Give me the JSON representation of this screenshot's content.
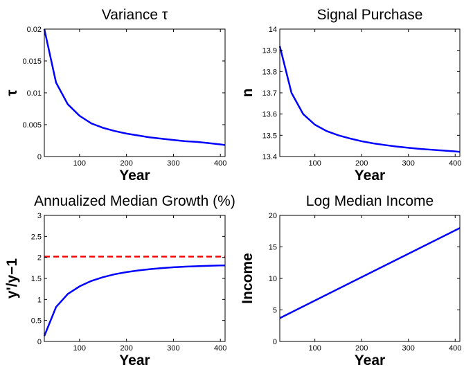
{
  "chart_data": [
    {
      "type": "line",
      "title": "Variance τ",
      "xlabel": "Year",
      "ylabel": "τ",
      "xlim": [
        25,
        410
      ],
      "ylim": [
        0,
        0.02
      ],
      "xticks": [
        "100",
        "200",
        "300",
        "400"
      ],
      "xtick_values": [
        100,
        200,
        300,
        400
      ],
      "yticks": [
        "0",
        "0.005",
        "0.01",
        "0.015",
        "0.02"
      ],
      "ytick_values": [
        0,
        0.005,
        0.01,
        0.015,
        0.02
      ],
      "grid": false,
      "series": [
        {
          "color": "#0000ff",
          "style": "solid",
          "x": [
            25,
            50,
            75,
            100,
            125,
            150,
            175,
            200,
            225,
            250,
            275,
            300,
            325,
            350,
            375,
            400,
            410
          ],
          "y": [
            0.02,
            0.0116,
            0.0082,
            0.0064,
            0.0052,
            0.0045,
            0.004,
            0.0036,
            0.0033,
            0.003,
            0.0028,
            0.0026,
            0.0024,
            0.0023,
            0.0021,
            0.0019,
            0.0018
          ]
        }
      ]
    },
    {
      "type": "line",
      "title": "Signal Purchase",
      "xlabel": "Year",
      "ylabel": "n",
      "xlim": [
        25,
        410
      ],
      "ylim": [
        13.4,
        14
      ],
      "xticks": [
        "100",
        "200",
        "300",
        "400"
      ],
      "xtick_values": [
        100,
        200,
        300,
        400
      ],
      "yticks": [
        "13.4",
        "13.5",
        "13.6",
        "13.7",
        "13.8",
        "13.9",
        "14"
      ],
      "ytick_values": [
        13.4,
        13.5,
        13.6,
        13.7,
        13.8,
        13.9,
        14
      ],
      "grid": false,
      "series": [
        {
          "color": "#0000ff",
          "style": "solid",
          "x": [
            25,
            50,
            75,
            100,
            125,
            150,
            175,
            200,
            225,
            250,
            275,
            300,
            325,
            350,
            375,
            400,
            410
          ],
          "y": [
            13.92,
            13.7,
            13.6,
            13.55,
            13.52,
            13.5,
            13.485,
            13.472,
            13.462,
            13.454,
            13.447,
            13.441,
            13.436,
            13.432,
            13.428,
            13.424,
            13.422
          ]
        }
      ]
    },
    {
      "type": "line",
      "title": "Annualized Median Growth (%)",
      "xlabel": "Year",
      "ylabel": "y'/y−1",
      "xlim": [
        25,
        410
      ],
      "ylim": [
        0,
        3
      ],
      "xticks": [
        "100",
        "200",
        "300",
        "400"
      ],
      "xtick_values": [
        100,
        200,
        300,
        400
      ],
      "yticks": [
        "0",
        "0.5",
        "1",
        "1.5",
        "2",
        "2.5",
        "3"
      ],
      "ytick_values": [
        0,
        0.5,
        1,
        1.5,
        2,
        2.5,
        3
      ],
      "grid": false,
      "series": [
        {
          "color": "#0000ff",
          "style": "solid",
          "x": [
            25,
            50,
            75,
            100,
            125,
            150,
            175,
            200,
            225,
            250,
            275,
            300,
            325,
            350,
            375,
            400,
            410
          ],
          "y": [
            0.13,
            0.82,
            1.13,
            1.31,
            1.44,
            1.53,
            1.6,
            1.65,
            1.69,
            1.72,
            1.745,
            1.765,
            1.78,
            1.79,
            1.8,
            1.81,
            1.81
          ]
        },
        {
          "color": "#ff0000",
          "style": "dashed",
          "x": [
            25,
            410
          ],
          "y": [
            2.02,
            2.02
          ]
        }
      ]
    },
    {
      "type": "line",
      "title": "Log Median Income",
      "xlabel": "Year",
      "ylabel": "Income",
      "xlim": [
        25,
        410
      ],
      "ylim": [
        0,
        20
      ],
      "xticks": [
        "100",
        "200",
        "300",
        "400"
      ],
      "xtick_values": [
        100,
        200,
        300,
        400
      ],
      "yticks": [
        "0",
        "5",
        "10",
        "15",
        "20"
      ],
      "ytick_values": [
        0,
        5,
        10,
        15,
        20
      ],
      "grid": false,
      "series": [
        {
          "color": "#0000ff",
          "style": "solid",
          "x": [
            25,
            410
          ],
          "y": [
            3.7,
            18.0
          ]
        }
      ]
    }
  ]
}
